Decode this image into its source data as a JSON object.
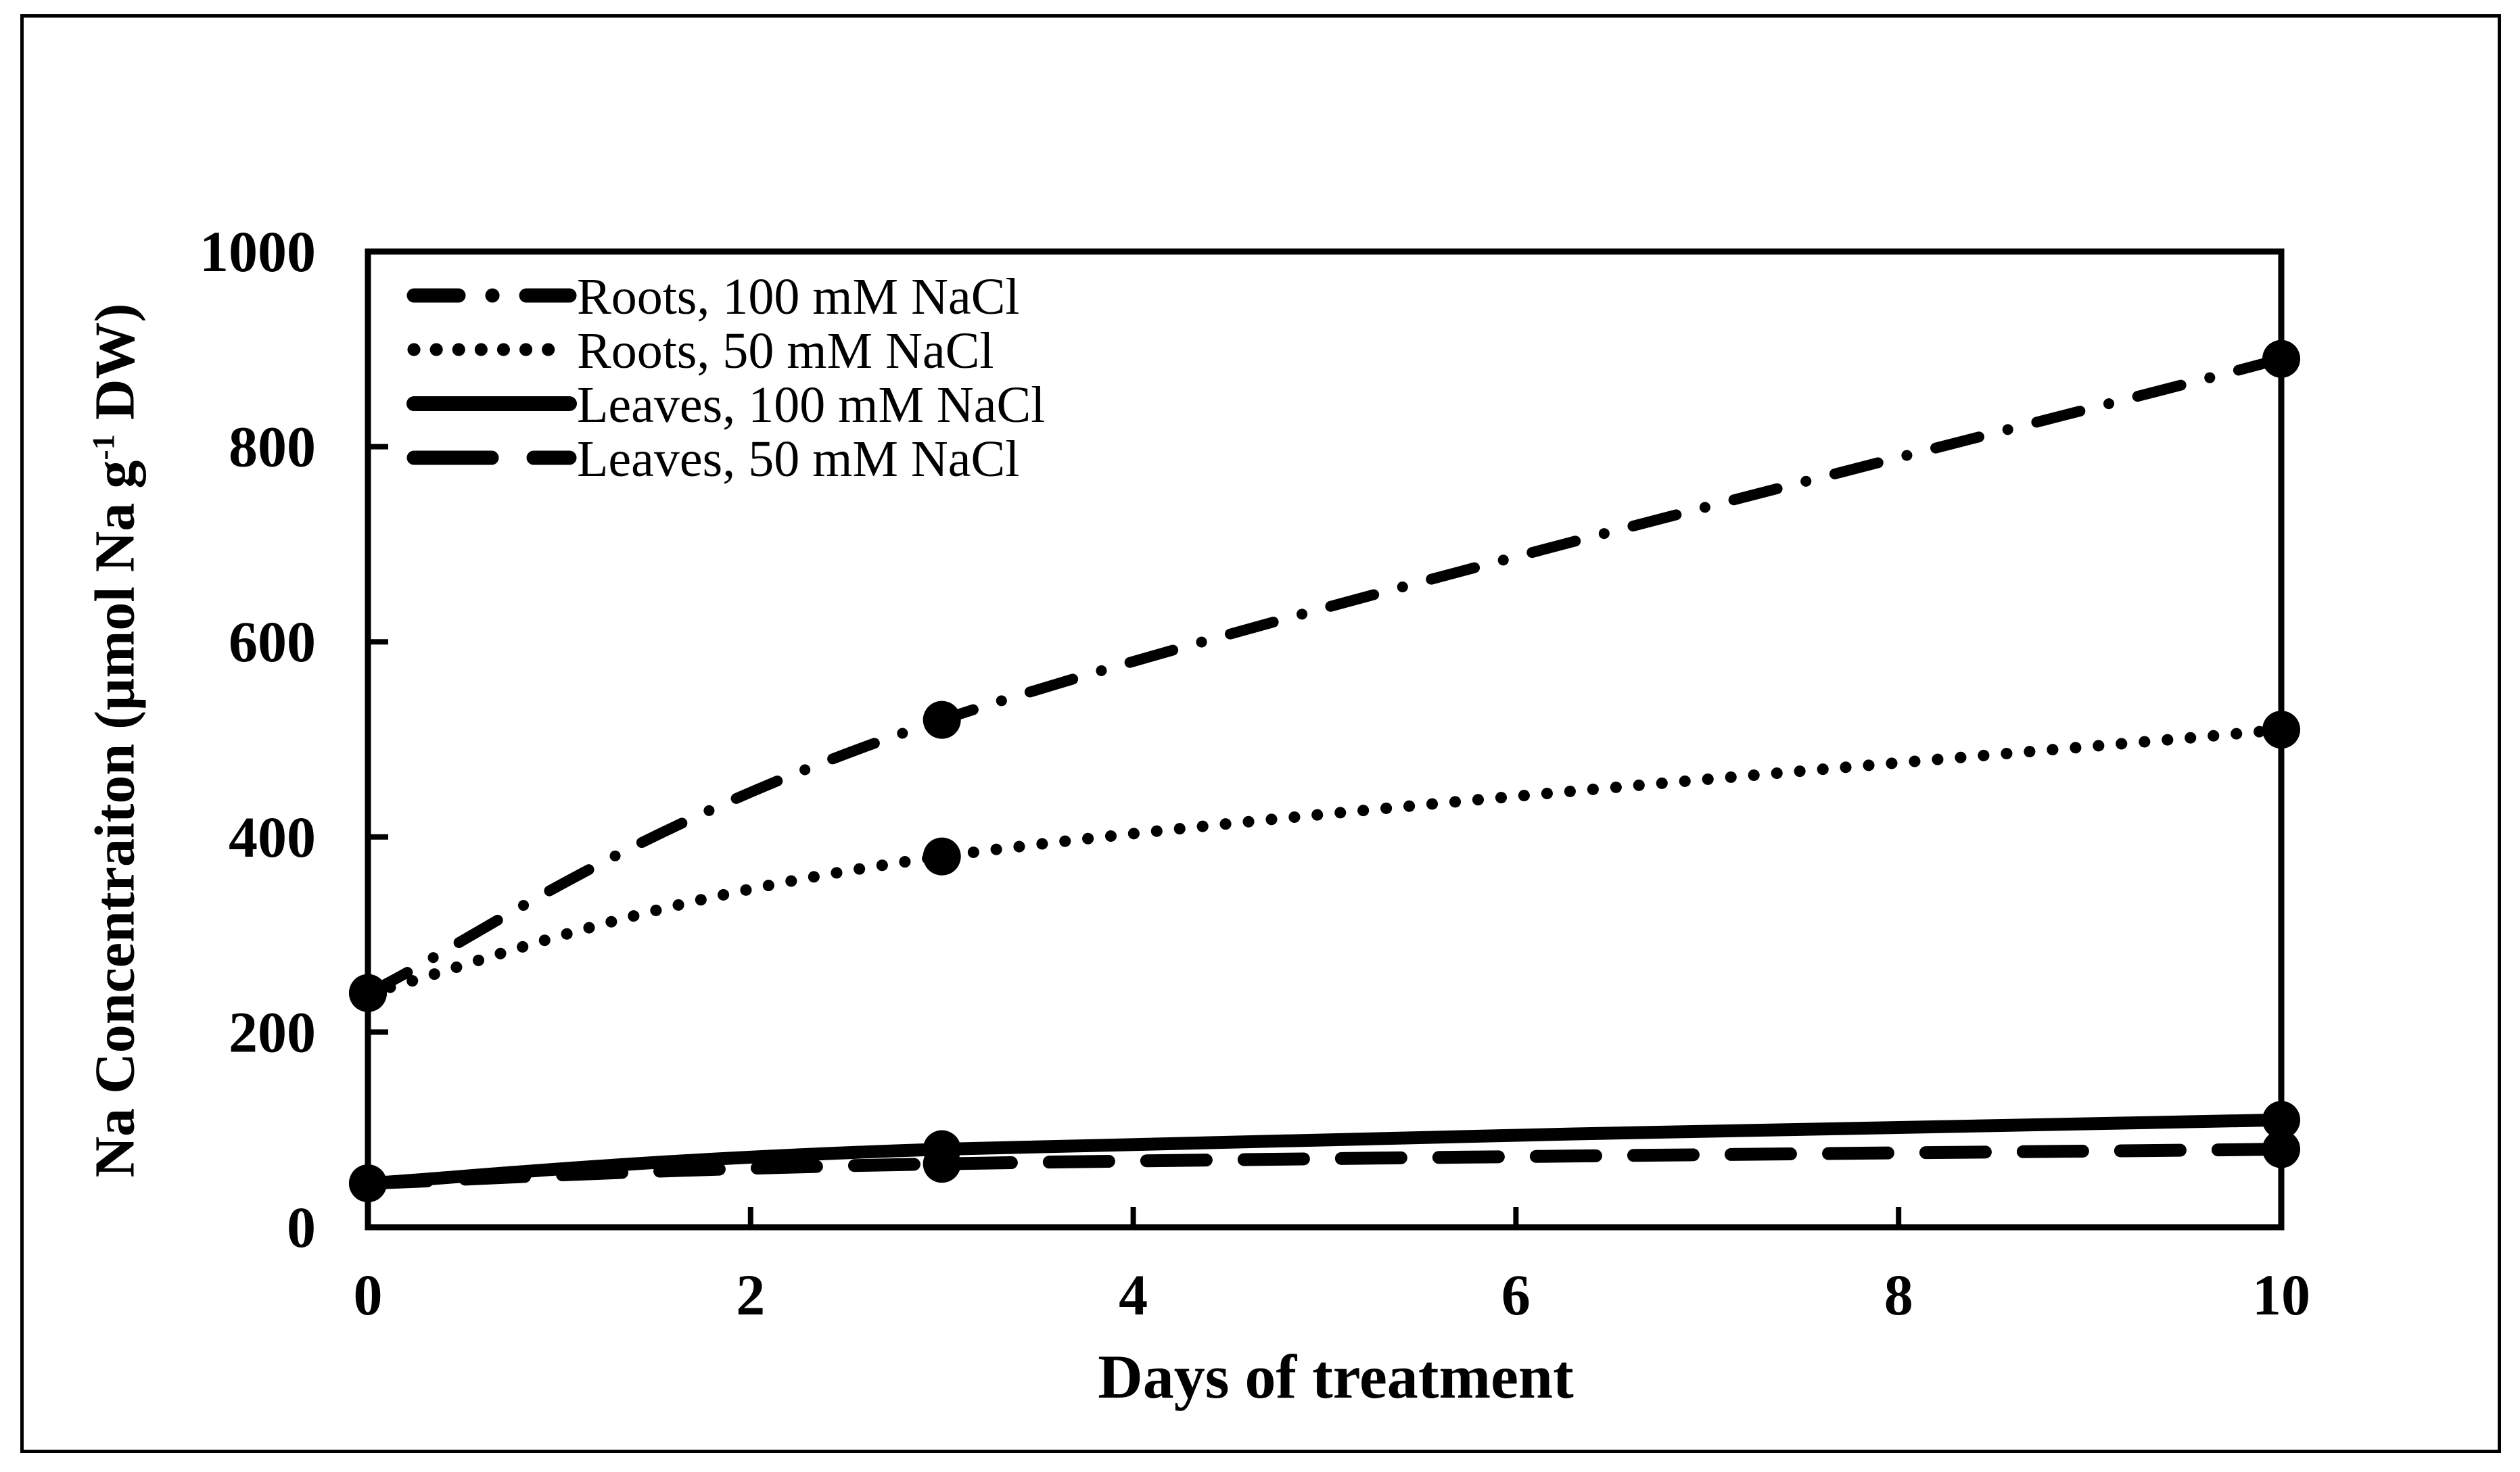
{
  "figure": {
    "background": "#ffffff",
    "border_color": "#000000",
    "ink_color": "#000000"
  },
  "chart_data": {
    "type": "line",
    "title": "",
    "xlabel": "Days of treatment",
    "ylabel": "Na Concentraiton (µmol Na g-1 DW)",
    "ylabel_parts": {
      "pre": "Na Concentraiton (µmol Na g",
      "sup": "-1",
      "post": " DW)"
    },
    "xlim": [
      0,
      10
    ],
    "ylim": [
      0,
      1000
    ],
    "x_ticks": [
      0,
      2,
      4,
      6,
      8,
      10
    ],
    "y_ticks": [
      0,
      200,
      400,
      600,
      800,
      1000
    ],
    "grid": false,
    "legend_position": "top-left-inside",
    "marker": "filled-circle",
    "x": [
      0,
      3,
      10
    ],
    "series": [
      {
        "name": "Roots, 100 mM NaCl",
        "style": "dash-dot",
        "values": [
          240,
          520,
          890
        ]
      },
      {
        "name": "Roots, 50 mM NaCl",
        "style": "dotted",
        "values": [
          240,
          380,
          510
        ]
      },
      {
        "name": "Leaves, 100 mM NaCl",
        "style": "solid",
        "values": [
          45,
          80,
          110
        ]
      },
      {
        "name": "Leaves, 50 mM NaCl",
        "style": "long-dash",
        "values": [
          45,
          65,
          80
        ]
      }
    ]
  }
}
